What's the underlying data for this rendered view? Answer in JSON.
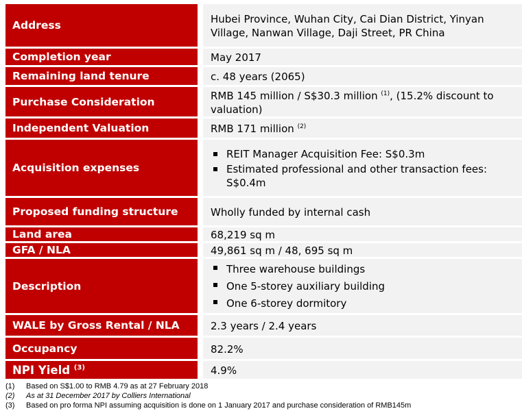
{
  "rows": [
    {
      "label": "Address",
      "value": "Hubei Province, Wuhan City, Cai Dian District, Yinyan Village, Nanwan Village, Daji Street, PR China"
    },
    {
      "label": "Completion year",
      "value": "May 2017"
    },
    {
      "label": "Remaining land tenure",
      "value": "c. 48 years (2065)"
    },
    {
      "label": "Purchase Consideration",
      "value_pre": "RMB 145 million / S$30.3 million ",
      "sup": "(1)",
      "value_post": ", (15.2% discount to valuation)"
    },
    {
      "label": "Independent Valuation",
      "value_pre": "RMB 171 million ",
      "sup": "(2)"
    },
    {
      "label": "Acquisition expenses",
      "bullets": [
        "REIT Manager Acquisition Fee: S$0.3m",
        "Estimated professional and other transaction fees: S$0.4m"
      ]
    },
    {
      "label": "Proposed funding structure",
      "value": "Wholly funded by internal cash"
    },
    {
      "label": "Land area",
      "value": "68,219 sq m"
    },
    {
      "label": "GFA / NLA",
      "value": "49,861 sq m / 48, 695 sq m"
    },
    {
      "label": "Description",
      "bullets": [
        "Three warehouse buildings",
        "One 5-storey auxiliary building",
        "One 6-storey dormitory"
      ]
    },
    {
      "label": "WALE by Gross Rental / NLA",
      "value": "2.3 years / 2.4 years"
    },
    {
      "label": "Occupancy",
      "value": "82.2%"
    },
    {
      "label": "NPI Yield",
      "label_sup": "(3)",
      "value": "4.9%"
    }
  ],
  "footnotes": [
    {
      "num": "(1)",
      "text": "Based on S$1.00 to RMB 4.79 as at 27 February 2018"
    },
    {
      "num": "(2)",
      "text": "As at 31 December 2017 by Colliers International"
    },
    {
      "num": "(3)",
      "text": "Based on pro forma NPI assuming acquisition is done on 1 January 2017 and purchase consideration of RMB145m"
    }
  ],
  "colors": {
    "label_bg": "#c00000",
    "value_bg": "#f2f2f2"
  }
}
